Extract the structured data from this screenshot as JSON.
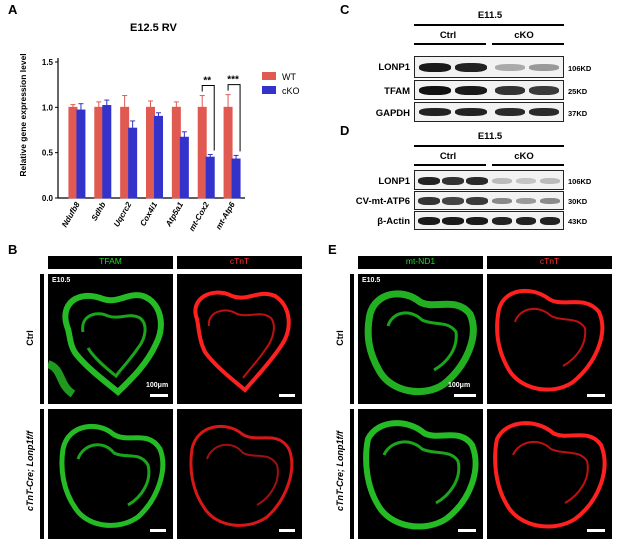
{
  "panels": {
    "A": "A",
    "B": "B",
    "C": "C",
    "D": "D",
    "E": "E"
  },
  "panel_a": {
    "title": "E12.5 RV",
    "ylabel": "Relative gene expression level",
    "legend": [
      {
        "label": "WT",
        "color": "#e05a52"
      },
      {
        "label": "cKO",
        "color": "#3333cc"
      }
    ],
    "significance": [
      {
        "gene": "mt-Cox2",
        "label": "**"
      },
      {
        "gene": "mt-Atp6",
        "label": "***"
      }
    ]
  },
  "chart_data": {
    "type": "bar",
    "title": "E12.5 RV",
    "ylabel": "Relative gene expression level",
    "xlabel": "",
    "categories": [
      "Ndufb8",
      "Sdhb",
      "Uqcrc2",
      "Cox4i1",
      "Atp5a1",
      "mt-Cox2",
      "mt-Atp6"
    ],
    "yticks": [
      "0.0",
      "0.5",
      "1.0",
      "1.5"
    ],
    "ylim": [
      0,
      1.5
    ],
    "series": [
      {
        "name": "WT",
        "color": "#e05a52",
        "values": [
          1.0,
          1.0,
          1.0,
          1.0,
          1.0,
          1.0,
          1.0
        ],
        "errors": [
          0.03,
          0.06,
          0.13,
          0.07,
          0.06,
          0.13,
          0.14
        ]
      },
      {
        "name": "cKO",
        "color": "#3333cc",
        "values": [
          0.97,
          1.02,
          0.77,
          0.9,
          0.67,
          0.45,
          0.43
        ],
        "errors": [
          0.07,
          0.06,
          0.08,
          0.04,
          0.06,
          0.03,
          0.04
        ]
      }
    ]
  },
  "panel_c": {
    "stage": "E11.5",
    "groups": [
      "Ctrl",
      "cKO"
    ],
    "rows": [
      {
        "label": "LONP1",
        "kd": "106KD"
      },
      {
        "label": "TFAM",
        "kd": "25KD"
      },
      {
        "label": "GAPDH",
        "kd": "37KD"
      }
    ]
  },
  "panel_d": {
    "stage": "E11.5",
    "groups": [
      "Ctrl",
      "cKO"
    ],
    "rows": [
      {
        "label": "LONP1",
        "kd": "106KD"
      },
      {
        "label": "CV-mt-ATP6",
        "kd": "30KD"
      },
      {
        "label": "β-Actin",
        "kd": "43KD"
      }
    ]
  },
  "panel_b": {
    "headers": [
      "TFAM",
      "cTnT"
    ],
    "header_colors": [
      "#22dd22",
      "#ff2222"
    ],
    "stage": "E10.5",
    "rows": [
      "Ctrl",
      "cTnT-Cre; Lonp1f/f"
    ],
    "scalebar": "100μm"
  },
  "panel_e": {
    "headers": [
      "mt-ND1",
      "cTnT"
    ],
    "header_colors": [
      "#22dd22",
      "#ff2222"
    ],
    "stage": "E10.5",
    "rows": [
      "Ctrl",
      "cTnT-Cre; Lonp1f/f"
    ],
    "scalebar": "100μm"
  }
}
